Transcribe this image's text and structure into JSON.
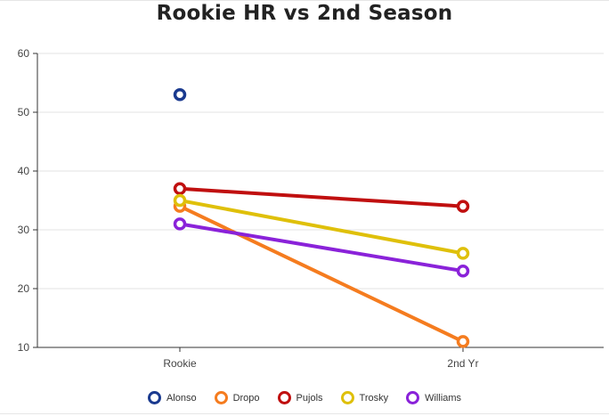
{
  "chart_data": {
    "type": "line",
    "title": "Rookie HR vs 2nd Season",
    "xlabel": "",
    "ylabel": "",
    "categories": [
      "Rookie",
      "2nd Yr"
    ],
    "ylim": [
      10,
      60
    ],
    "yticks": [
      10,
      20,
      30,
      40,
      50,
      60
    ],
    "grid": true,
    "legend_position": "bottom",
    "series": [
      {
        "name": "Alonso",
        "color": "#1a3a8f",
        "values": [
          53,
          null
        ]
      },
      {
        "name": "Dropo",
        "color": "#f57c1f",
        "values": [
          34,
          11
        ]
      },
      {
        "name": "Pujols",
        "color": "#c00f0f",
        "values": [
          37,
          34
        ]
      },
      {
        "name": "Trosky",
        "color": "#dfc00a",
        "values": [
          35,
          26
        ]
      },
      {
        "name": "Williams",
        "color": "#8a22d9",
        "values": [
          31,
          23
        ]
      }
    ]
  }
}
